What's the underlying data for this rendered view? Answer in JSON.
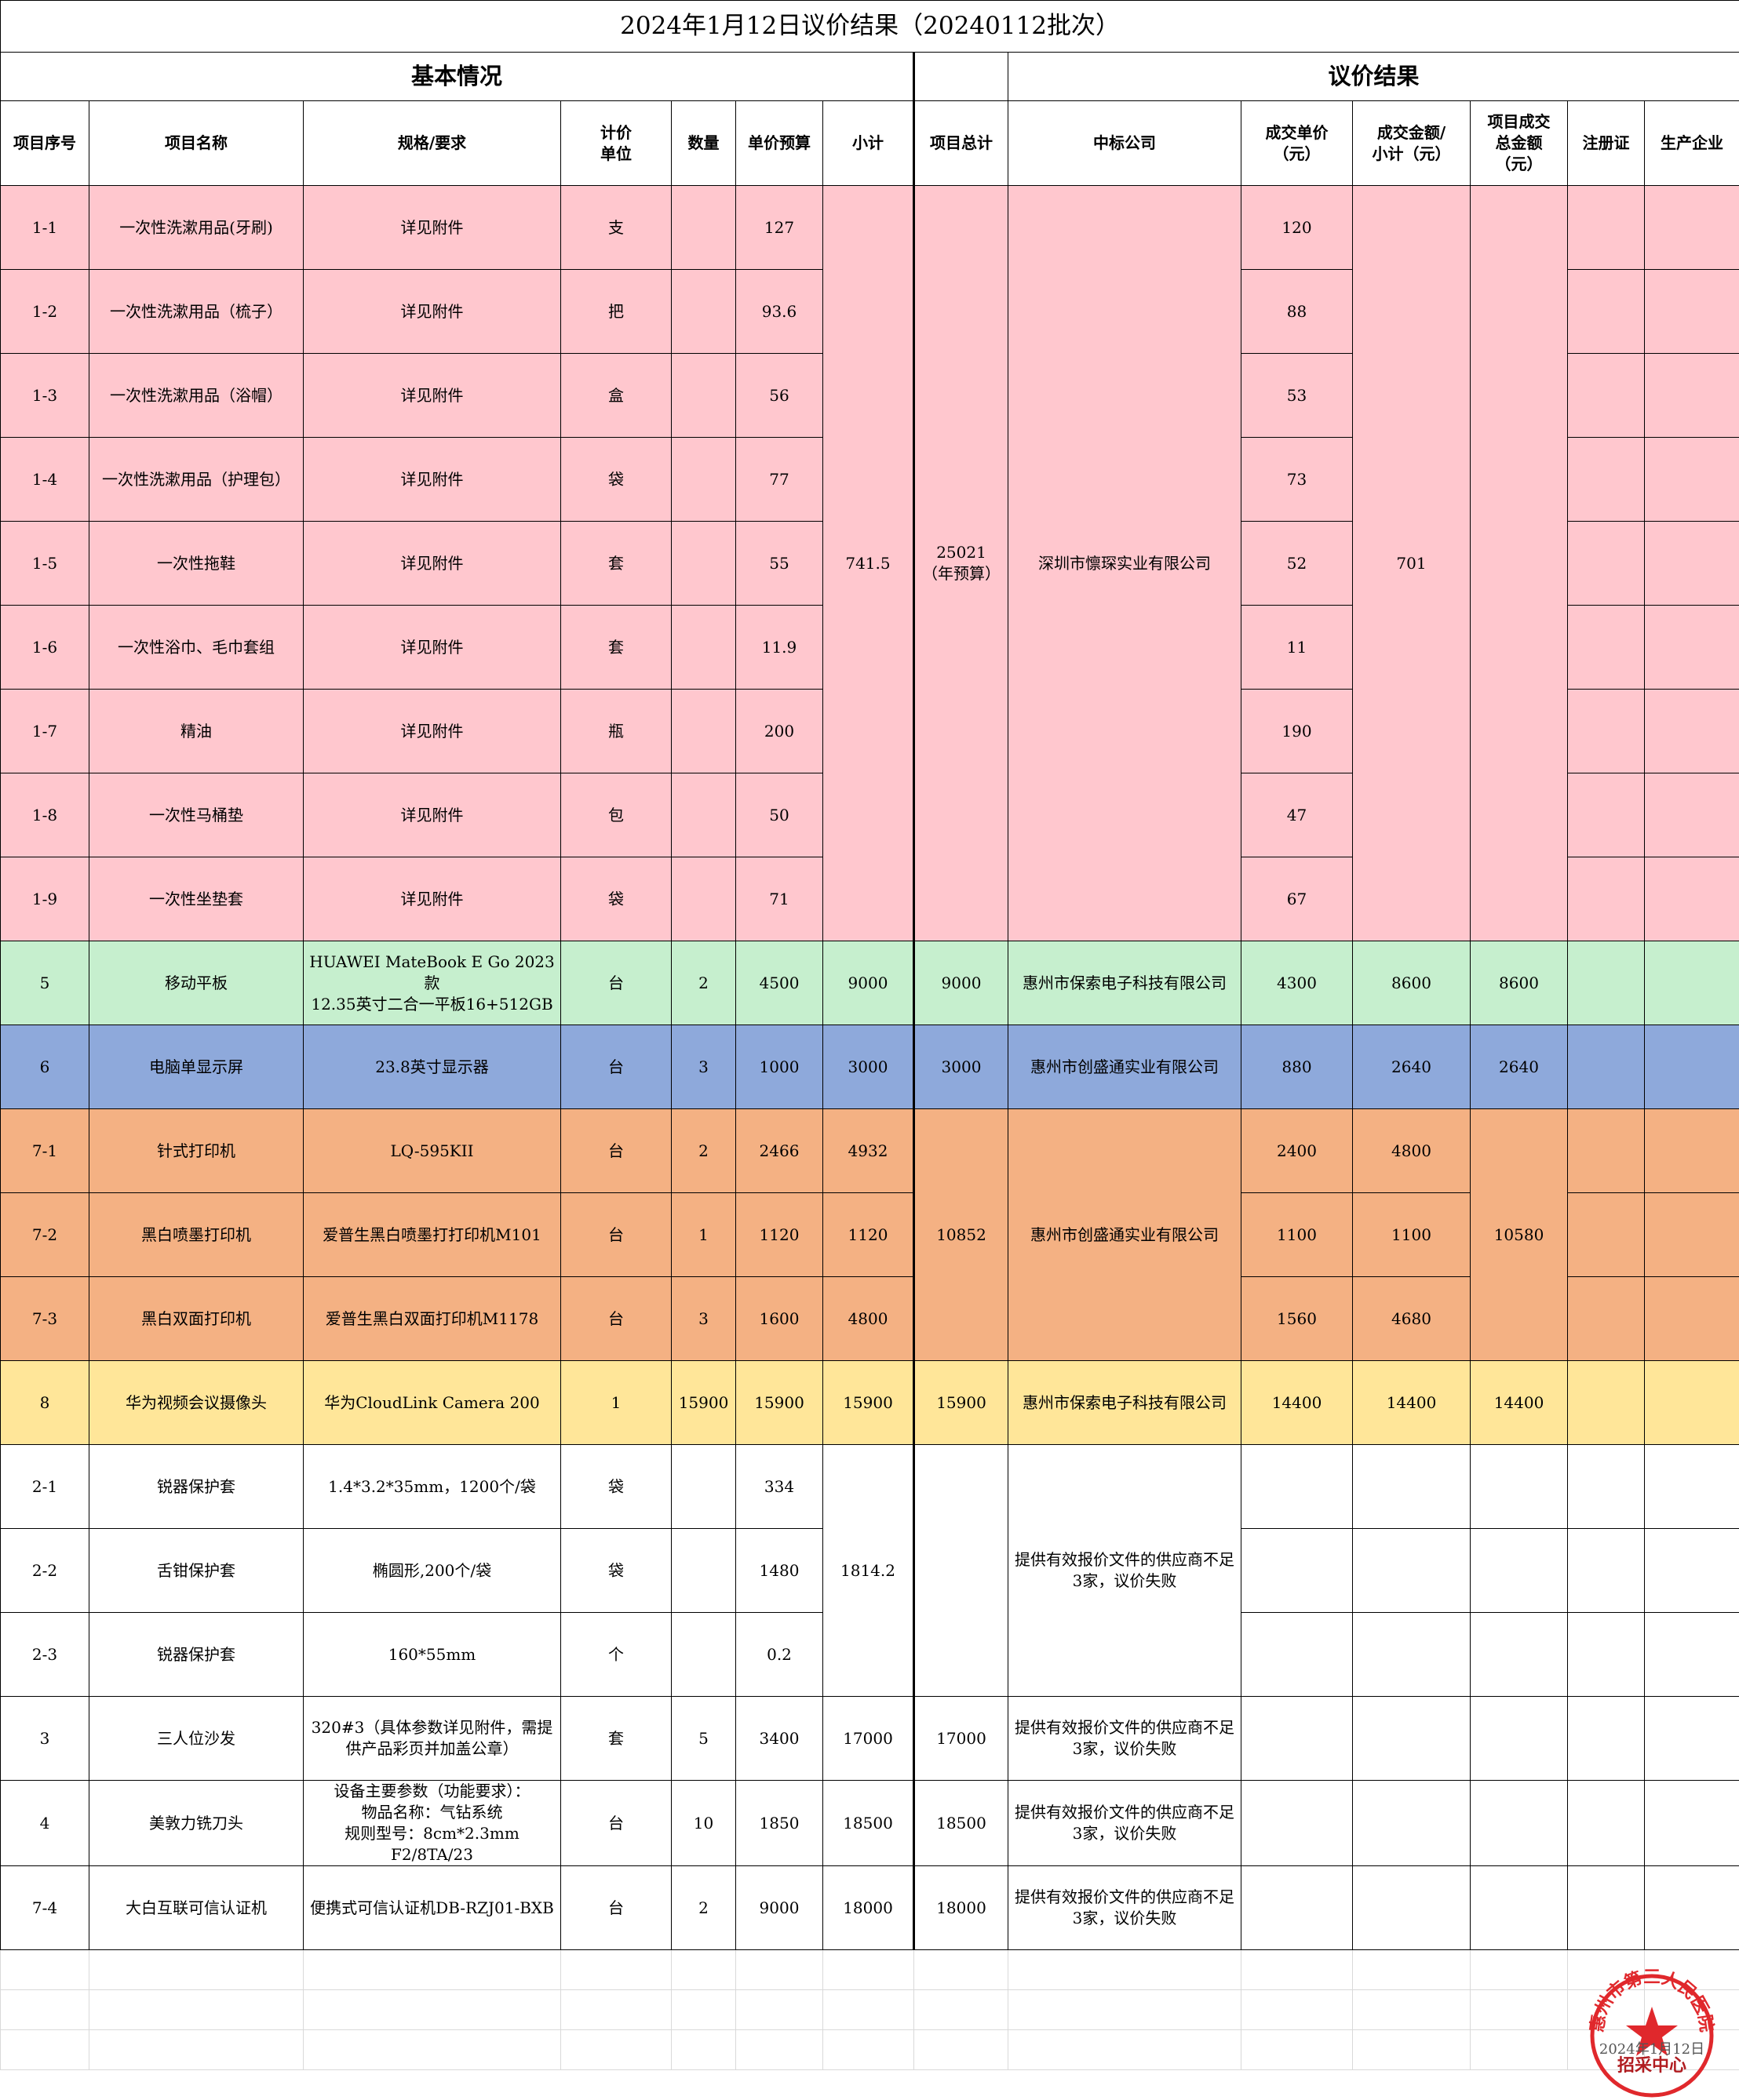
{
  "title": "2024年1月12日议价结果（20240112批次）",
  "sections": [
    "基本情况",
    "议价结果"
  ],
  "columns": [
    "项目序号",
    "项目名称",
    "规格/要求",
    "计价\n单位",
    "数量",
    "单价预算",
    "小计",
    "项目总计",
    "中标公司",
    "成交单价\n（元）",
    "成交金额/\n小计（元）",
    "项目成交\n总金额\n（元）",
    "注册证",
    "生产企业"
  ],
  "rows": [
    [
      "1-1",
      "一次性洗漱用品(牙刷)",
      "详见附件",
      "支",
      null,
      "127",
      "741.5",
      "25021\n（年预算）",
      "深圳市懔琛实业有限公司",
      "120",
      "701",
      null,
      null,
      null
    ],
    [
      "1-2",
      "一次性洗漱用品（梳子）",
      "详见附件",
      "把",
      null,
      "93.6",
      null,
      null,
      null,
      "88",
      null,
      null,
      null,
      null
    ],
    [
      "1-3",
      "一次性洗漱用品（浴帽）",
      "详见附件",
      "盒",
      null,
      "56",
      null,
      null,
      null,
      "53",
      null,
      null,
      null,
      null
    ],
    [
      "1-4",
      "一次性洗漱用品（护理包）",
      "详见附件",
      "袋",
      null,
      "77",
      null,
      null,
      null,
      "73",
      null,
      null,
      null,
      null
    ],
    [
      "1-5",
      "一次性拖鞋",
      "详见附件",
      "套",
      null,
      "55",
      null,
      null,
      null,
      "52",
      null,
      null,
      null,
      null
    ],
    [
      "1-6",
      "一次性浴巾、毛巾套组",
      "详见附件",
      "套",
      null,
      "11.9",
      null,
      null,
      null,
      "11",
      null,
      null,
      null,
      null
    ],
    [
      "1-7",
      "精油",
      "详见附件",
      "瓶",
      null,
      "200",
      null,
      null,
      null,
      "190",
      null,
      null,
      null,
      null
    ],
    [
      "1-8",
      "一次性马桶垫",
      "详见附件",
      "包",
      null,
      "50",
      null,
      null,
      null,
      "47",
      null,
      null,
      null,
      null
    ],
    [
      "1-9",
      "一次性坐垫套",
      "详见附件",
      "袋",
      null,
      "71",
      null,
      null,
      null,
      "67",
      null,
      null,
      null,
      null
    ],
    [
      "5",
      "移动平板",
      "HUAWEI MateBook E Go 2023款\n12.35英寸二合一平板16+512GB",
      "台",
      "2",
      "4500",
      "9000",
      "9000",
      "惠州市保索电子科技有限公司",
      "4300",
      "8600",
      "8600",
      null,
      null
    ],
    [
      "6",
      "电脑单显示屏",
      "23.8英寸显示器",
      "台",
      "3",
      "1000",
      "3000",
      "3000",
      "惠州市创盛通实业有限公司",
      "880",
      "2640",
      "2640",
      null,
      null
    ],
    [
      "7-1",
      "针式打印机",
      "LQ-595KII",
      "台",
      "2",
      "2466",
      "4932",
      "10852",
      "惠州市创盛通实业有限公司",
      "2400",
      "4800",
      "10580",
      null,
      null
    ],
    [
      "7-2",
      "黑白喷墨打印机",
      "爱普生黑白喷墨打打印机M101",
      "台",
      "1",
      "1120",
      "1120",
      null,
      null,
      "1100",
      "1100",
      null,
      null,
      null
    ],
    [
      "7-3",
      "黑白双面打印机",
      "爱普生黑白双面打印机M1178",
      "台",
      "3",
      "1600",
      "4800",
      null,
      null,
      "1560",
      "4680",
      null,
      null,
      null
    ],
    [
      "8",
      "华为视频会议摄像头",
      "华为CloudLink Camera 200",
      "1",
      "15900",
      "15900",
      "15900",
      "15900",
      "惠州市保索电子科技有限公司",
      "14400",
      "14400",
      "14400",
      null,
      null
    ],
    [
      "2-1",
      "锐器保护套",
      "1.4*3.2*35mm，1200个/袋",
      "袋",
      null,
      "334",
      "1814.2",
      null,
      "提供有效报价文件的供应商不足3家，议价失败",
      null,
      null,
      null,
      null,
      null
    ],
    [
      "2-2",
      "舌钳保护套",
      "椭圆形,200个/袋",
      "袋",
      null,
      "1480",
      null,
      null,
      null,
      null,
      null,
      null,
      null,
      null
    ],
    [
      "2-3",
      "锐器保护套",
      "160*55mm",
      "个",
      null,
      "0.2",
      null,
      null,
      null,
      null,
      null,
      null,
      null,
      null
    ],
    [
      "3",
      "三人位沙发",
      "320#3（具体参数详见附件，需提供产品彩页并加盖公章）",
      "套",
      "5",
      "3400",
      "17000",
      "17000",
      "提供有效报价文件的供应商不足3家，议价失败",
      null,
      null,
      null,
      null,
      null
    ],
    [
      "4",
      "美敦力铣刀头",
      "设备主要参数（功能要求）：\n物品名称：气钻系统\n规则型号：8cm*2.3mm F2/8TA/23",
      "台",
      "10",
      "1850",
      "18500",
      "18500",
      "提供有效报价文件的供应商不足3家，议价失败",
      null,
      null,
      null,
      null,
      null
    ],
    [
      "7-4",
      "大白互联可信认证机",
      "便携式可信认证机DB-RZJ01-BXB",
      "台",
      "2",
      "9000",
      "18000",
      "18000",
      "提供有效报价文件的供应商不足3家，议价失败",
      null,
      null,
      null,
      null,
      null
    ]
  ],
  "stamp": {
    "name": "惠州市第三人民医院",
    "dept": "招采中心",
    "date": "2024年1月12日"
  }
}
